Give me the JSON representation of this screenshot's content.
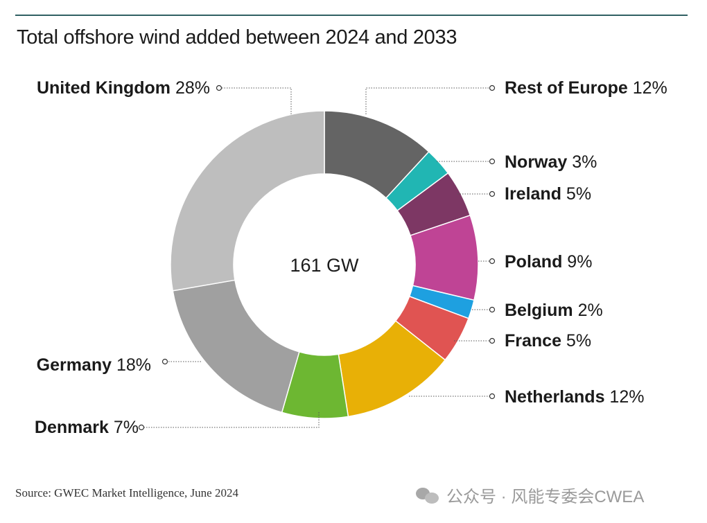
{
  "title": "Total offshore wind added between 2024 and 2033",
  "source": "Source: GWEC Market Intelligence, June 2024",
  "watermark": "公众号 · 风能专委会CWEA",
  "chart_data": {
    "type": "pie",
    "variant": "donut",
    "center_label": "161 GW",
    "total": 161,
    "unit": "GW",
    "slices": [
      {
        "name": "Rest of Europe",
        "value": 12,
        "label": "Rest of Europe",
        "pct_label": "12%",
        "color": "#646464"
      },
      {
        "name": "Norway",
        "value": 3,
        "label": "Norway",
        "pct_label": "3%",
        "color": "#21b6b3"
      },
      {
        "name": "Ireland",
        "value": 5,
        "label": "Ireland",
        "pct_label": "5%",
        "color": "#7d3764"
      },
      {
        "name": "Poland",
        "value": 9,
        "label": "Poland",
        "pct_label": "9%",
        "color": "#bf4495"
      },
      {
        "name": "Belgium",
        "value": 2,
        "label": "Belgium",
        "pct_label": "2%",
        "color": "#1ea0e0"
      },
      {
        "name": "France",
        "value": 5,
        "label": "France",
        "pct_label": "5%",
        "color": "#e05452"
      },
      {
        "name": "Netherlands",
        "value": 12,
        "label": "Netherlands",
        "pct_label": "12%",
        "color": "#e8b006"
      },
      {
        "name": "Denmark",
        "value": 7,
        "label": "Denmark",
        "pct_label": "7%",
        "color": "#6db732"
      },
      {
        "name": "Germany",
        "value": 18,
        "label": "Germany",
        "pct_label": "18%",
        "color": "#a0a0a0"
      },
      {
        "name": "United Kingdom",
        "value": 28,
        "label": "United Kingdom",
        "pct_label": "28%",
        "color": "#bebebe"
      }
    ]
  }
}
